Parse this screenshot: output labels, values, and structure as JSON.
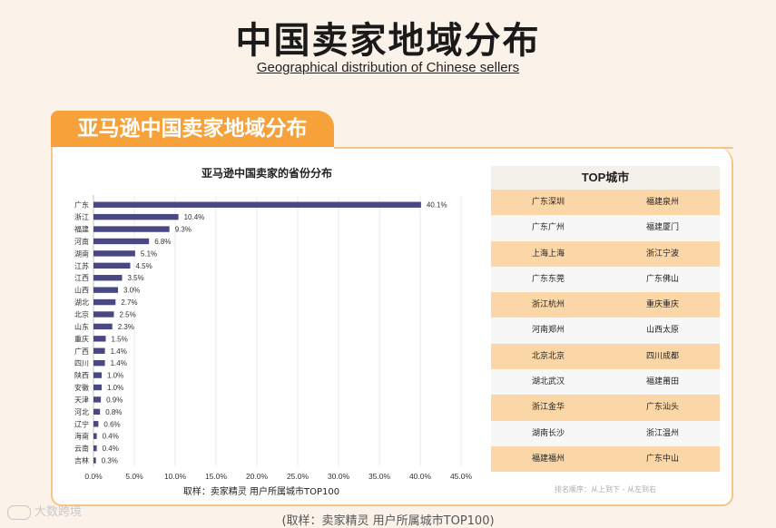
{
  "header": {
    "title": "中国卖家地域分布",
    "subtitle": "Geographical distribution of Chinese sellers"
  },
  "section": {
    "tab_label": "亚马逊中国卖家地域分布"
  },
  "chart_data": {
    "type": "bar",
    "orientation": "horizontal",
    "title": "亚马逊中国卖家的省份分布",
    "categories": [
      "广东",
      "浙江",
      "福建",
      "河南",
      "湖南",
      "江苏",
      "江西",
      "山西",
      "湖北",
      "北京",
      "山东",
      "重庆",
      "广西",
      "四川",
      "陕西",
      "安徽",
      "天津",
      "河北",
      "辽宁",
      "海南",
      "云南",
      "吉林"
    ],
    "values": [
      40.1,
      10.4,
      9.3,
      6.8,
      5.1,
      4.5,
      3.5,
      3.0,
      2.7,
      2.5,
      2.3,
      1.5,
      1.4,
      1.4,
      1.0,
      1.0,
      0.9,
      0.8,
      0.6,
      0.4,
      0.4,
      0.3
    ],
    "value_labels": [
      "40.1%",
      "10.4%",
      "9.3%",
      "6.8%",
      "5.1%",
      "4.5%",
      "3.5%",
      "3.0%",
      "2.7%",
      "2.5%",
      "2.3%",
      "1.5%",
      "1.4%",
      "1.4%",
      "1.0%",
      "1.0%",
      "0.9%",
      "0.8%",
      "0.6%",
      "0.4%",
      "0.4%",
      "0.3%"
    ],
    "xlim": [
      0,
      45
    ],
    "xticks": [
      "0.0%",
      "5.0%",
      "10.0%",
      "15.0%",
      "20.0%",
      "25.0%",
      "30.0%",
      "35.0%",
      "40.0%",
      "45.0%"
    ],
    "grid": true,
    "bar_color": "#4a4785",
    "source": "取样：卖家精灵 用户所属城市TOP100"
  },
  "top_cities": {
    "title": "TOP城市",
    "rows": [
      [
        "广东深圳",
        "福建泉州"
      ],
      [
        "广东广州",
        "福建厦门"
      ],
      [
        "上海上海",
        "浙江宁波"
      ],
      [
        "广东东莞",
        "广东佛山"
      ],
      [
        "浙江杭州",
        "重庆重庆"
      ],
      [
        "河南郑州",
        "山西太原"
      ],
      [
        "北京北京",
        "四川成都"
      ],
      [
        "湖北武汉",
        "福建莆田"
      ],
      [
        "浙江金华",
        "广东汕头"
      ],
      [
        "湖南长沙",
        "浙江温州"
      ],
      [
        "福建福州",
        "广东中山"
      ]
    ],
    "note": "排名顺序：从上到下 - 从左到右"
  },
  "watermark": {
    "text": "大数跨境"
  },
  "bottom_caption": "(取样：卖家精灵 用户所属城市TOP100)",
  "colors": {
    "accent": "#f6a13a",
    "row_highlight": "#fbd7a8",
    "background": "#fbf3e9"
  }
}
